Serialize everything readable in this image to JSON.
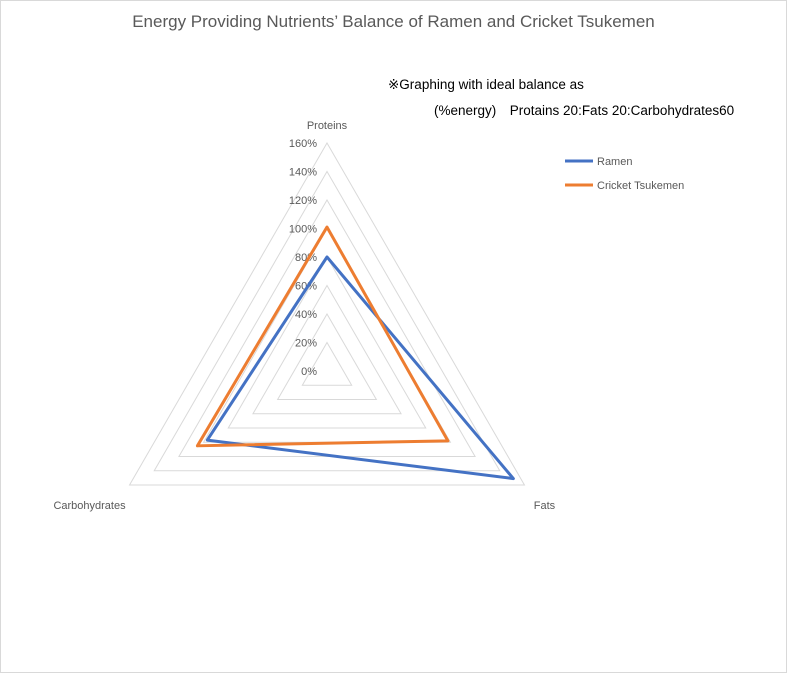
{
  "chart_data": {
    "type": "radar",
    "title": "Energy Providing Nutrients’ Balance of Ramen and Cricket Tsukemen",
    "note_line1": "※Graphing with ideal balance as",
    "note_line2": "(%energy)　Protains 20:Fats 20:Carbohydrates60",
    "categories": [
      "Proteins",
      "Fats",
      "Carbohydrates"
    ],
    "rmin": 0,
    "rmax": 160,
    "ticks": [
      0,
      20,
      40,
      60,
      80,
      100,
      120,
      140,
      160
    ],
    "tick_labels": [
      "0%",
      "20%",
      "40%",
      "60%",
      "80%",
      "100%",
      "120%",
      "140%",
      "160%"
    ],
    "series": [
      {
        "name": "Ramen",
        "values": [
          80,
          151,
          97
        ],
        "color": "#4472c4"
      },
      {
        "name": "Cricket Tsukemen",
        "values": [
          101,
          98,
          105
        ],
        "color": "#ed7d31"
      }
    ],
    "legend_position": "top-right",
    "grid": true
  }
}
